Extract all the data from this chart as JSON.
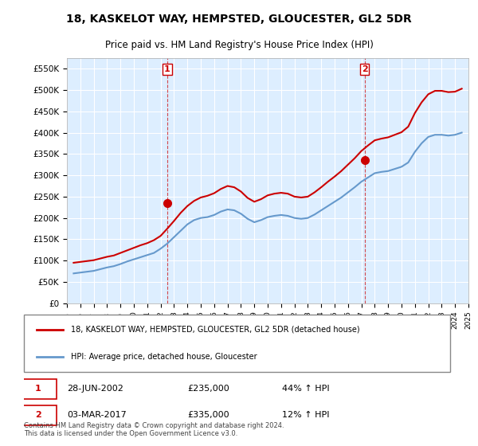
{
  "title": "18, KASKELOT WAY, HEMPSTED, GLOUCESTER, GL2 5DR",
  "subtitle": "Price paid vs. HM Land Registry's House Price Index (HPI)",
  "legend_line1": "18, KASKELOT WAY, HEMPSTED, GLOUCESTER, GL2 5DR (detached house)",
  "legend_line2": "HPI: Average price, detached house, Gloucester",
  "annotation1_label": "1",
  "annotation1_date": "28-JUN-2002",
  "annotation1_price": "£235,000",
  "annotation1_hpi": "44% ↑ HPI",
  "annotation2_label": "2",
  "annotation2_date": "03-MAR-2017",
  "annotation2_price": "£335,000",
  "annotation2_hpi": "12% ↑ HPI",
  "footer": "Contains HM Land Registry data © Crown copyright and database right 2024.\nThis data is licensed under the Open Government Licence v3.0.",
  "hpi_color": "#6699cc",
  "price_color": "#cc0000",
  "annotation_color": "#cc0000",
  "background_color": "#ddeeff",
  "plot_bg_color": "#ddeeff",
  "ylim": [
    0,
    575000
  ],
  "yticks": [
    0,
    50000,
    100000,
    150000,
    200000,
    250000,
    300000,
    350000,
    400000,
    450000,
    500000,
    550000
  ],
  "hpi_data": {
    "years": [
      1995.5,
      1996.0,
      1996.5,
      1997.0,
      1997.5,
      1998.0,
      1998.5,
      1999.0,
      1999.5,
      2000.0,
      2000.5,
      2001.0,
      2001.5,
      2002.0,
      2002.5,
      2003.0,
      2003.5,
      2004.0,
      2004.5,
      2005.0,
      2005.5,
      2006.0,
      2006.5,
      2007.0,
      2007.5,
      2008.0,
      2008.5,
      2009.0,
      2009.5,
      2010.0,
      2010.5,
      2011.0,
      2011.5,
      2012.0,
      2012.5,
      2013.0,
      2013.5,
      2014.0,
      2014.5,
      2015.0,
      2015.5,
      2016.0,
      2016.5,
      2017.0,
      2017.5,
      2018.0,
      2018.5,
      2019.0,
      2019.5,
      2020.0,
      2020.5,
      2021.0,
      2021.5,
      2022.0,
      2022.5,
      2023.0,
      2023.5,
      2024.0,
      2024.5
    ],
    "values": [
      70000,
      72000,
      74000,
      76000,
      80000,
      84000,
      87000,
      92000,
      98000,
      103000,
      108000,
      113000,
      118000,
      128000,
      140000,
      155000,
      170000,
      185000,
      195000,
      200000,
      202000,
      207000,
      215000,
      220000,
      218000,
      210000,
      198000,
      190000,
      195000,
      202000,
      205000,
      207000,
      205000,
      200000,
      198000,
      200000,
      208000,
      218000,
      228000,
      238000,
      248000,
      260000,
      272000,
      285000,
      295000,
      305000,
      308000,
      310000,
      315000,
      320000,
      330000,
      355000,
      375000,
      390000,
      395000,
      395000,
      393000,
      395000,
      400000
    ]
  },
  "price_data": {
    "years": [
      1995.5,
      1996.0,
      1996.5,
      1997.0,
      1997.5,
      1998.0,
      1998.5,
      1999.0,
      1999.5,
      2000.0,
      2000.5,
      2001.0,
      2001.5,
      2002.0,
      2002.5,
      2003.0,
      2003.5,
      2004.0,
      2004.5,
      2005.0,
      2005.5,
      2006.0,
      2006.5,
      2007.0,
      2007.5,
      2008.0,
      2008.5,
      2009.0,
      2009.5,
      2010.0,
      2010.5,
      2011.0,
      2011.5,
      2012.0,
      2012.5,
      2013.0,
      2013.5,
      2014.0,
      2014.5,
      2015.0,
      2015.5,
      2016.0,
      2016.5,
      2017.0,
      2017.5,
      2018.0,
      2018.5,
      2019.0,
      2019.5,
      2020.0,
      2020.5,
      2021.0,
      2021.5,
      2022.0,
      2022.5,
      2023.0,
      2023.5,
      2024.0,
      2024.5
    ],
    "values": [
      95000,
      97000,
      99000,
      101000,
      105000,
      109000,
      112000,
      118000,
      124000,
      130000,
      136000,
      141000,
      148000,
      158000,
      175000,
      193000,
      212000,
      228000,
      240000,
      248000,
      252000,
      258000,
      268000,
      275000,
      272000,
      262000,
      247000,
      238000,
      244000,
      253000,
      257000,
      259000,
      257000,
      250000,
      248000,
      250000,
      260000,
      272000,
      285000,
      297000,
      310000,
      325000,
      340000,
      357000,
      370000,
      382000,
      386000,
      389000,
      395000,
      401000,
      414000,
      446000,
      471000,
      490000,
      498000,
      498000,
      495000,
      496000,
      503000
    ]
  },
  "sale1_year": 2002.5,
  "sale1_price": 235000,
  "sale2_year": 2017.25,
  "sale2_price": 335000,
  "xmin": 1995,
  "xmax": 2025
}
